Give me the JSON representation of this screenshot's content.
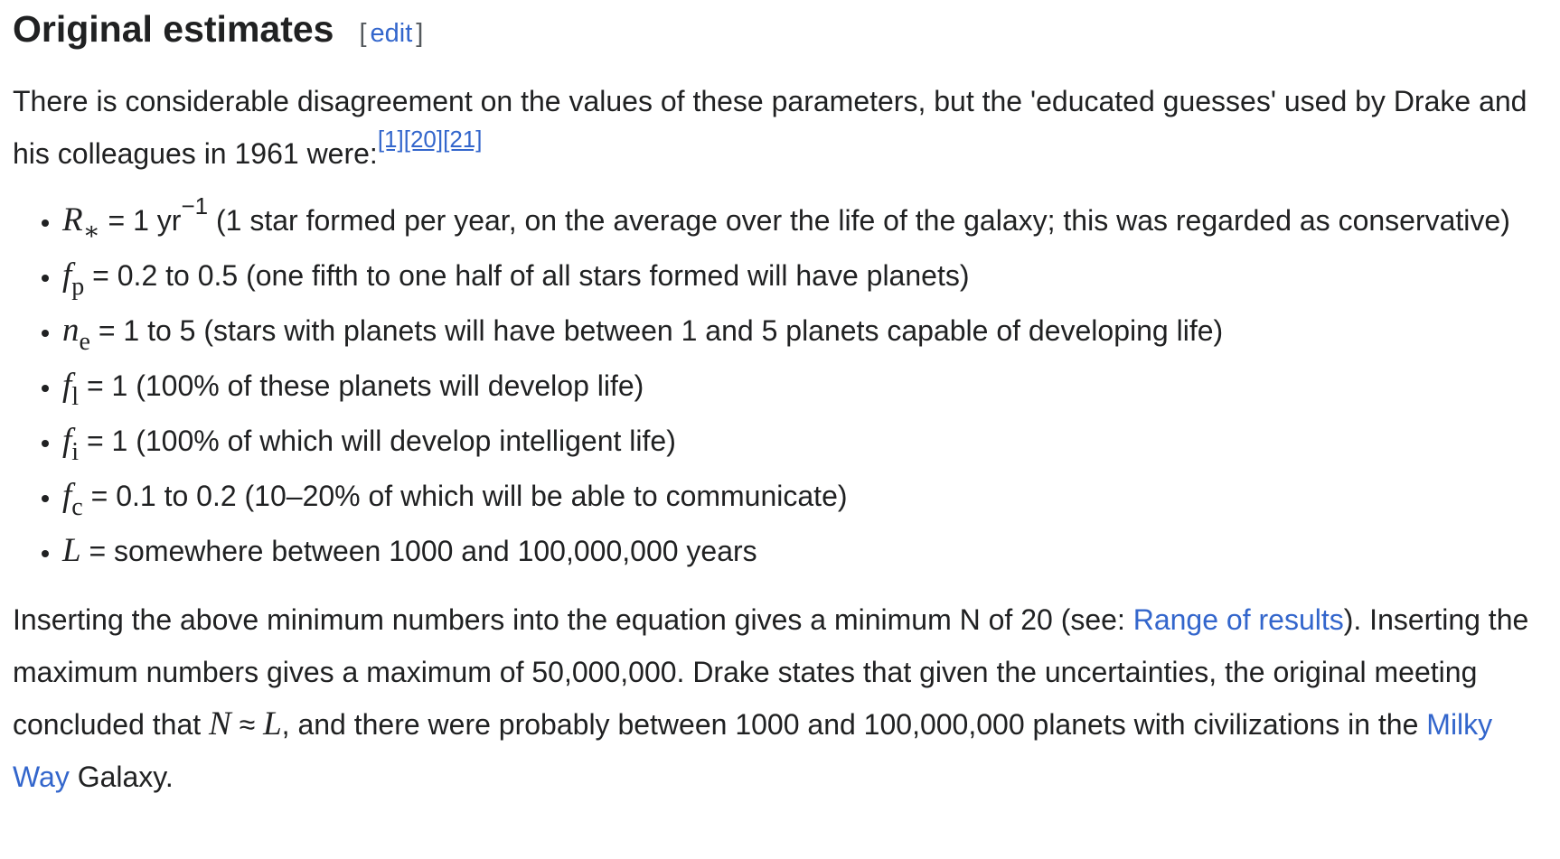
{
  "heading": {
    "title": "Original estimates",
    "edit_open": "[",
    "edit": "edit",
    "edit_close": "]"
  },
  "intro": {
    "runs": [
      {
        "text": "There is considerable disagreement on the values of these parameters, but the 'educated guesses' used by Drake and his colleagues in 1961 were:"
      }
    ],
    "refs": [
      "[1]",
      "[20]",
      "[21]"
    ]
  },
  "items": [
    {
      "symbol": "R",
      "subscript": "∗",
      "text": " = 1 yr",
      "superscript": "−1",
      "note": " (1 star formed per year, on the average over the life of the galaxy; this was regarded as conservative)"
    },
    {
      "symbol": "f",
      "subscript": "p",
      "text": " = 0.2 to 0.5 (one fifth to one half of all stars formed will have planets)"
    },
    {
      "symbol": "n",
      "subscript": "e",
      "text": " = 1 to 5 (stars with planets will have between 1 and 5 planets capable of developing life)"
    },
    {
      "symbol": "f",
      "subscript": "l",
      "text": " = 1 (100% of these planets will develop life)"
    },
    {
      "symbol": "f",
      "subscript": "i",
      "text": " = 1 (100% of which will develop intelligent life)"
    },
    {
      "symbol": "f",
      "subscript": "c",
      "text": " = 0.1 to 0.2 (10–20% of which will be able to communicate)"
    },
    {
      "symbol": "L",
      "text": " = somewhere between 1000 and 100,000,000 years"
    }
  ],
  "conclusion": {
    "runs": [
      {
        "text": "Inserting the above minimum numbers into the equation gives a minimum N of 20 (see: "
      },
      {
        "text": "Range of results",
        "link": true
      },
      {
        "text": "). Inserting the maximum numbers gives a maximum of 50,000,000. Drake states that given the uncertainties, the original meeting concluded that "
      },
      {
        "text": "N",
        "math": true
      },
      {
        "text": " ≈ "
      },
      {
        "text": "L",
        "math": true
      },
      {
        "text": ", and there were probably between 1000 and 100,000,000 planets with civilizations in the "
      },
      {
        "text": "Milky Way",
        "link": true
      },
      {
        "text": " Galaxy."
      }
    ]
  }
}
